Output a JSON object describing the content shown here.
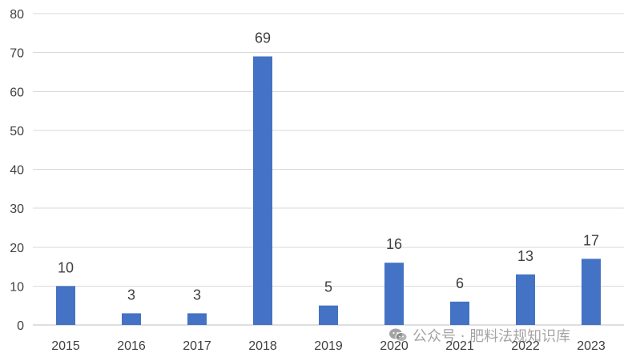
{
  "chart_data": {
    "type": "bar",
    "categories": [
      "2015",
      "2016",
      "2017",
      "2018",
      "2019",
      "2020",
      "2021",
      "2022",
      "2023"
    ],
    "values": [
      10,
      3,
      3,
      69,
      5,
      16,
      6,
      13,
      17
    ],
    "title": "",
    "xlabel": "",
    "ylabel": "",
    "ylim": [
      0,
      80
    ],
    "yticks": [
      0,
      10,
      20,
      30,
      40,
      50,
      60,
      70,
      80
    ],
    "grid": true,
    "data_labels": true,
    "bar_color": "#4472C4",
    "grid_color": "#d9d9d9",
    "label_color": "#404040"
  },
  "watermark": {
    "icon": "wechat-icon",
    "text": "公众号 · 肥料法规知识库"
  }
}
